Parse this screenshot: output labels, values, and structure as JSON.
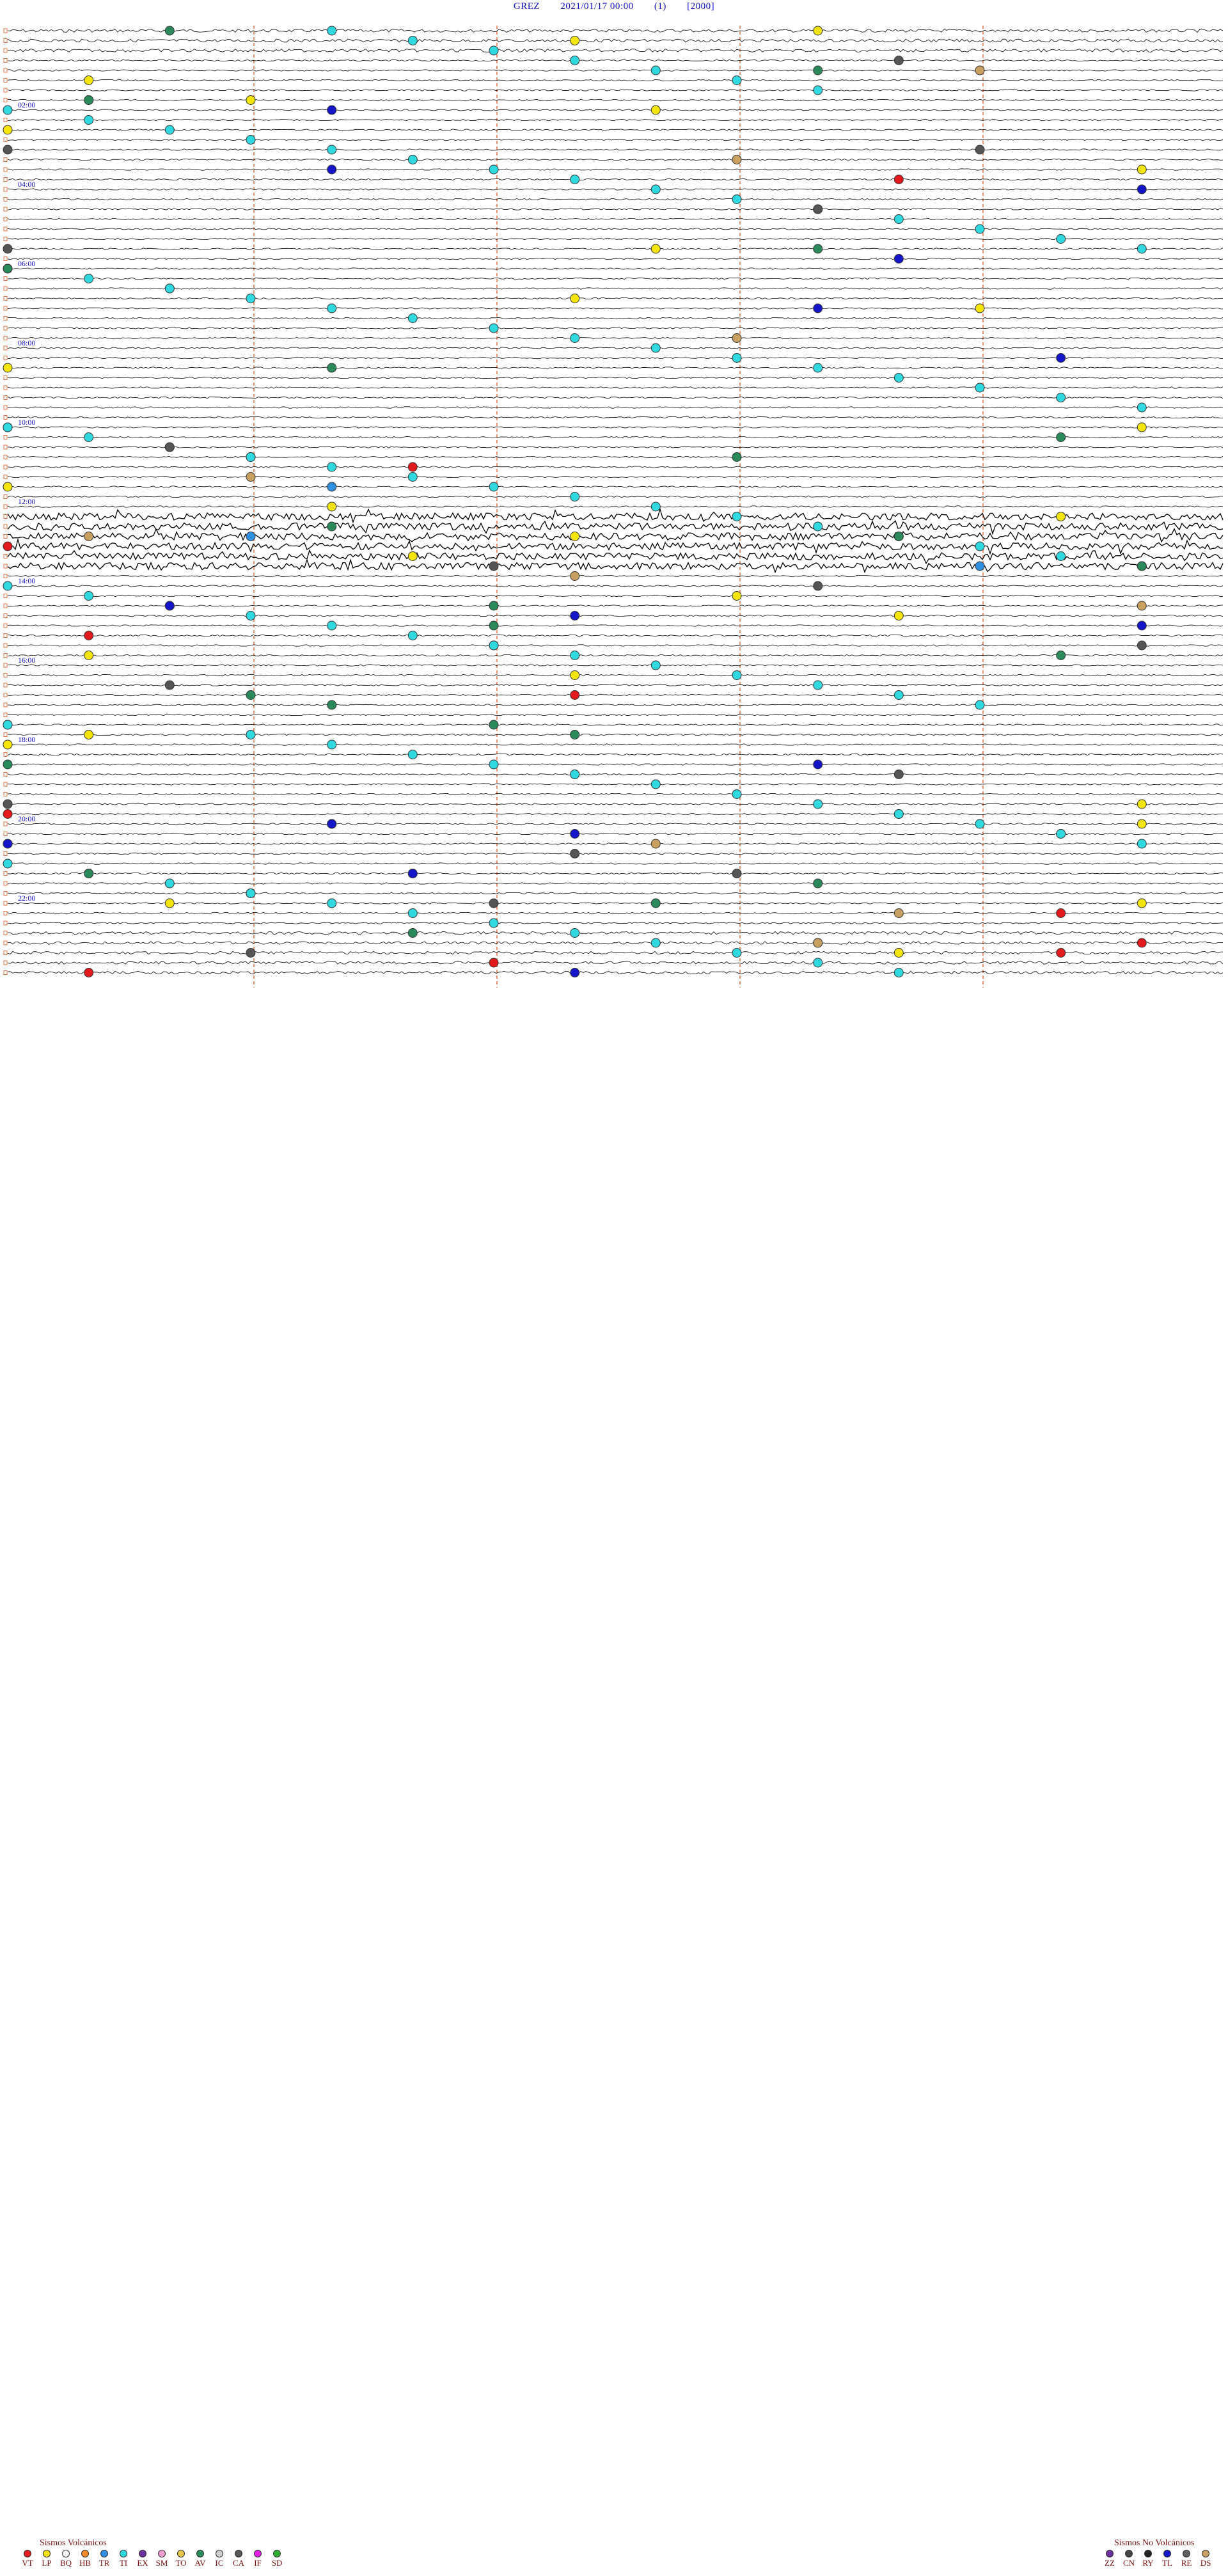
{
  "header": {
    "station": "GREZ",
    "datetime": "2021/01/17 00:00",
    "channel": "(1)",
    "scale": "[2000]"
  },
  "colors": {
    "trace": "#000000",
    "gridline": "#e07040",
    "time_label": "#1010c8",
    "legend_text": "#7a1010"
  },
  "chart_data": {
    "type": "scatter",
    "description_hidden": false,
    "time_labels": [
      "02:00",
      "04:00",
      "06:00",
      "08:00",
      "10:00",
      "12:00",
      "14:00",
      "16:00",
      "18:00",
      "20:00",
      "22:00"
    ],
    "event_classes": {
      "VT": "#e31a1c",
      "LP": "#f5e50a",
      "BQ": "#ffffff",
      "HB": "#f08c28",
      "TR": "#2f8fe0",
      "TI": "#30d8e0",
      "EX": "#6a2fa0",
      "SM": "#f0a0d0",
      "TO": "#e6c84a",
      "AV": "#2a8a5a",
      "IC": "#d0d0d0",
      "CA": "#555555",
      "IF": "#e020e0",
      "SD": "#30b030",
      "ZZ": "#6a2fa0",
      "CN": "#444444",
      "RY": "#222222",
      "TL": "#1414c8",
      "RE": "#606060",
      "DS": "#c8a060"
    },
    "events": [
      {
        "class": "VT",
        "times": [
          "03:56",
          "11:05",
          "12:28",
          "13:00",
          "15:16",
          "15:36",
          "16:52",
          "18:52",
          "19:45",
          "21:48",
          "22:28",
          "23:14",
          "23:28",
          "23:36",
          "23:46"
        ]
      },
      {
        "class": "LP",
        "times": [
          "00:10",
          "00:22",
          "01:16",
          "01:48",
          "02:08",
          "02:30",
          "03:44",
          "05:38",
          "06:32",
          "06:52",
          "07:12",
          "08:30",
          "10:00",
          "10:14",
          "10:48",
          "11:30",
          "12:04",
          "12:28",
          "12:52",
          "13:20",
          "13:44",
          "14:24",
          "14:56",
          "15:46",
          "16:22",
          "17:30",
          "17:46",
          "18:00",
          "19:44",
          "19:56",
          "20:14",
          "20:28",
          "21:20",
          "21:48",
          "22:02",
          "22:14",
          "23:26"
        ]
      },
      {
        "class": "TR",
        "times": [
          "01:46",
          "11:34",
          "12:48",
          "13:42"
        ]
      },
      {
        "class": "TI",
        "times": [
          "00:04",
          "00:20",
          "00:36",
          "00:52",
          "01:08",
          "01:24",
          "01:40",
          "02:00",
          "02:16",
          "02:32",
          "02:48",
          "03:04",
          "03:20",
          "03:36",
          "03:52",
          "04:08",
          "04:24",
          "04:40",
          "04:56",
          "05:12",
          "05:28",
          "05:44",
          "06:00",
          "06:16",
          "06:32",
          "06:48",
          "07:04",
          "07:20",
          "07:36",
          "07:52",
          "08:08",
          "08:24",
          "08:40",
          "08:56",
          "09:12",
          "09:28",
          "09:44",
          "10:00",
          "10:16",
          "10:32",
          "10:48",
          "11:04",
          "11:20",
          "11:36",
          "11:52",
          "12:08",
          "12:24",
          "12:40",
          "12:56",
          "13:12",
          "13:28",
          "13:44",
          "14:00",
          "14:16",
          "14:32",
          "14:48",
          "15:04",
          "15:20",
          "15:36",
          "15:52",
          "16:08",
          "16:24",
          "16:40",
          "16:56",
          "17:12",
          "17:30",
          "17:48",
          "18:04",
          "18:20",
          "18:36",
          "18:52",
          "19:08",
          "19:24",
          "19:40",
          "19:56",
          "20:12",
          "20:28",
          "20:44",
          "21:00",
          "21:16",
          "21:32",
          "21:48",
          "22:04",
          "22:20",
          "22:36",
          "22:52",
          "23:08",
          "23:24",
          "23:40",
          "23:56"
        ]
      },
      {
        "class": "AV",
        "times": [
          "00:02",
          "01:10",
          "01:46",
          "05:40",
          "06:00",
          "08:34",
          "10:28",
          "10:54",
          "12:34",
          "12:56",
          "13:44",
          "14:36",
          "15:06",
          "15:58",
          "16:48",
          "17:04",
          "17:36",
          "17:52",
          "18:30",
          "20:04",
          "20:30",
          "21:16",
          "21:40",
          "22:08",
          "22:50",
          "23:10"
        ]
      },
      {
        "class": "CA",
        "times": [
          "00:56",
          "03:00",
          "03:12",
          "04:40",
          "05:30",
          "10:32",
          "13:36",
          "14:10",
          "15:44",
          "16:32",
          "18:56",
          "19:30",
          "20:52",
          "21:24",
          "22:06",
          "23:18"
        ]
      },
      {
        "class": "TL",
        "times": [
          "02:04",
          "03:34",
          "04:14",
          "05:56",
          "07:10",
          "08:28",
          "14:32",
          "14:52",
          "15:14",
          "18:40",
          "20:04",
          "20:22",
          "20:30",
          "21:20",
          "23:52"
        ]
      },
      {
        "class": "DS",
        "times": [
          "01:12",
          "03:24",
          "07:54",
          "11:18",
          "12:46",
          "13:52",
          "14:44",
          "20:38",
          "22:26",
          "23:10"
        ]
      }
    ],
    "legend_volcanic_title": "Sismos Volcánicos",
    "legend_volcanic": [
      "VT",
      "LP",
      "BQ",
      "HB",
      "TR",
      "TI",
      "EX",
      "SM",
      "TO",
      "AV",
      "IC",
      "CA",
      "IF",
      "SD"
    ],
    "legend_nonvolcanic_title": "Sismos No Volcánicos",
    "legend_nonvolcanic": [
      "ZZ",
      "CN",
      "RY",
      "TL",
      "RE",
      "DS"
    ]
  }
}
